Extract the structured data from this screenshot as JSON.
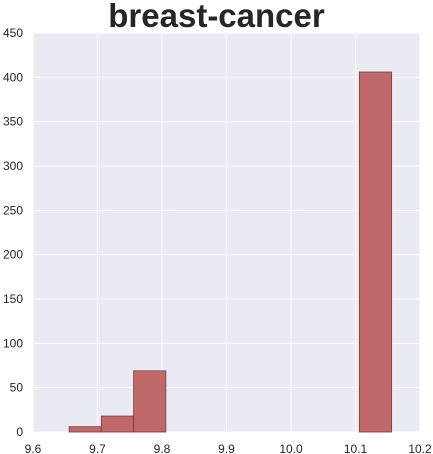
{
  "chart_data": {
    "type": "bar",
    "title": "breast-cancer",
    "xlabel": "",
    "ylabel": "",
    "xlim": [
      9.6,
      10.2
    ],
    "ylim": [
      0,
      450
    ],
    "xticks": [
      "9.6",
      "9.7",
      "9.8",
      "9.9",
      "10.0",
      "10.1",
      "10.2"
    ],
    "yticks": [
      "0",
      "50",
      "100",
      "150",
      "200",
      "250",
      "300",
      "350",
      "400",
      "450"
    ],
    "grid": true,
    "colors": {
      "bar": "#c0696a",
      "bar_edge": "#7a3a3b",
      "background": "#eaeaf2",
      "grid": "#ffffff"
    },
    "bins": [
      {
        "x0": 9.656,
        "x1": 9.706,
        "value": 6
      },
      {
        "x0": 9.706,
        "x1": 9.756,
        "value": 18
      },
      {
        "x0": 9.756,
        "x1": 9.806,
        "value": 69
      },
      {
        "x0": 9.806,
        "x1": 9.856,
        "value": 0
      },
      {
        "x0": 9.856,
        "x1": 9.906,
        "value": 0
      },
      {
        "x0": 9.906,
        "x1": 9.956,
        "value": 0
      },
      {
        "x0": 9.956,
        "x1": 10.006,
        "value": 0
      },
      {
        "x0": 10.006,
        "x1": 10.056,
        "value": 0
      },
      {
        "x0": 10.056,
        "x1": 10.106,
        "value": 0
      },
      {
        "x0": 10.106,
        "x1": 10.156,
        "value": 406
      }
    ]
  }
}
